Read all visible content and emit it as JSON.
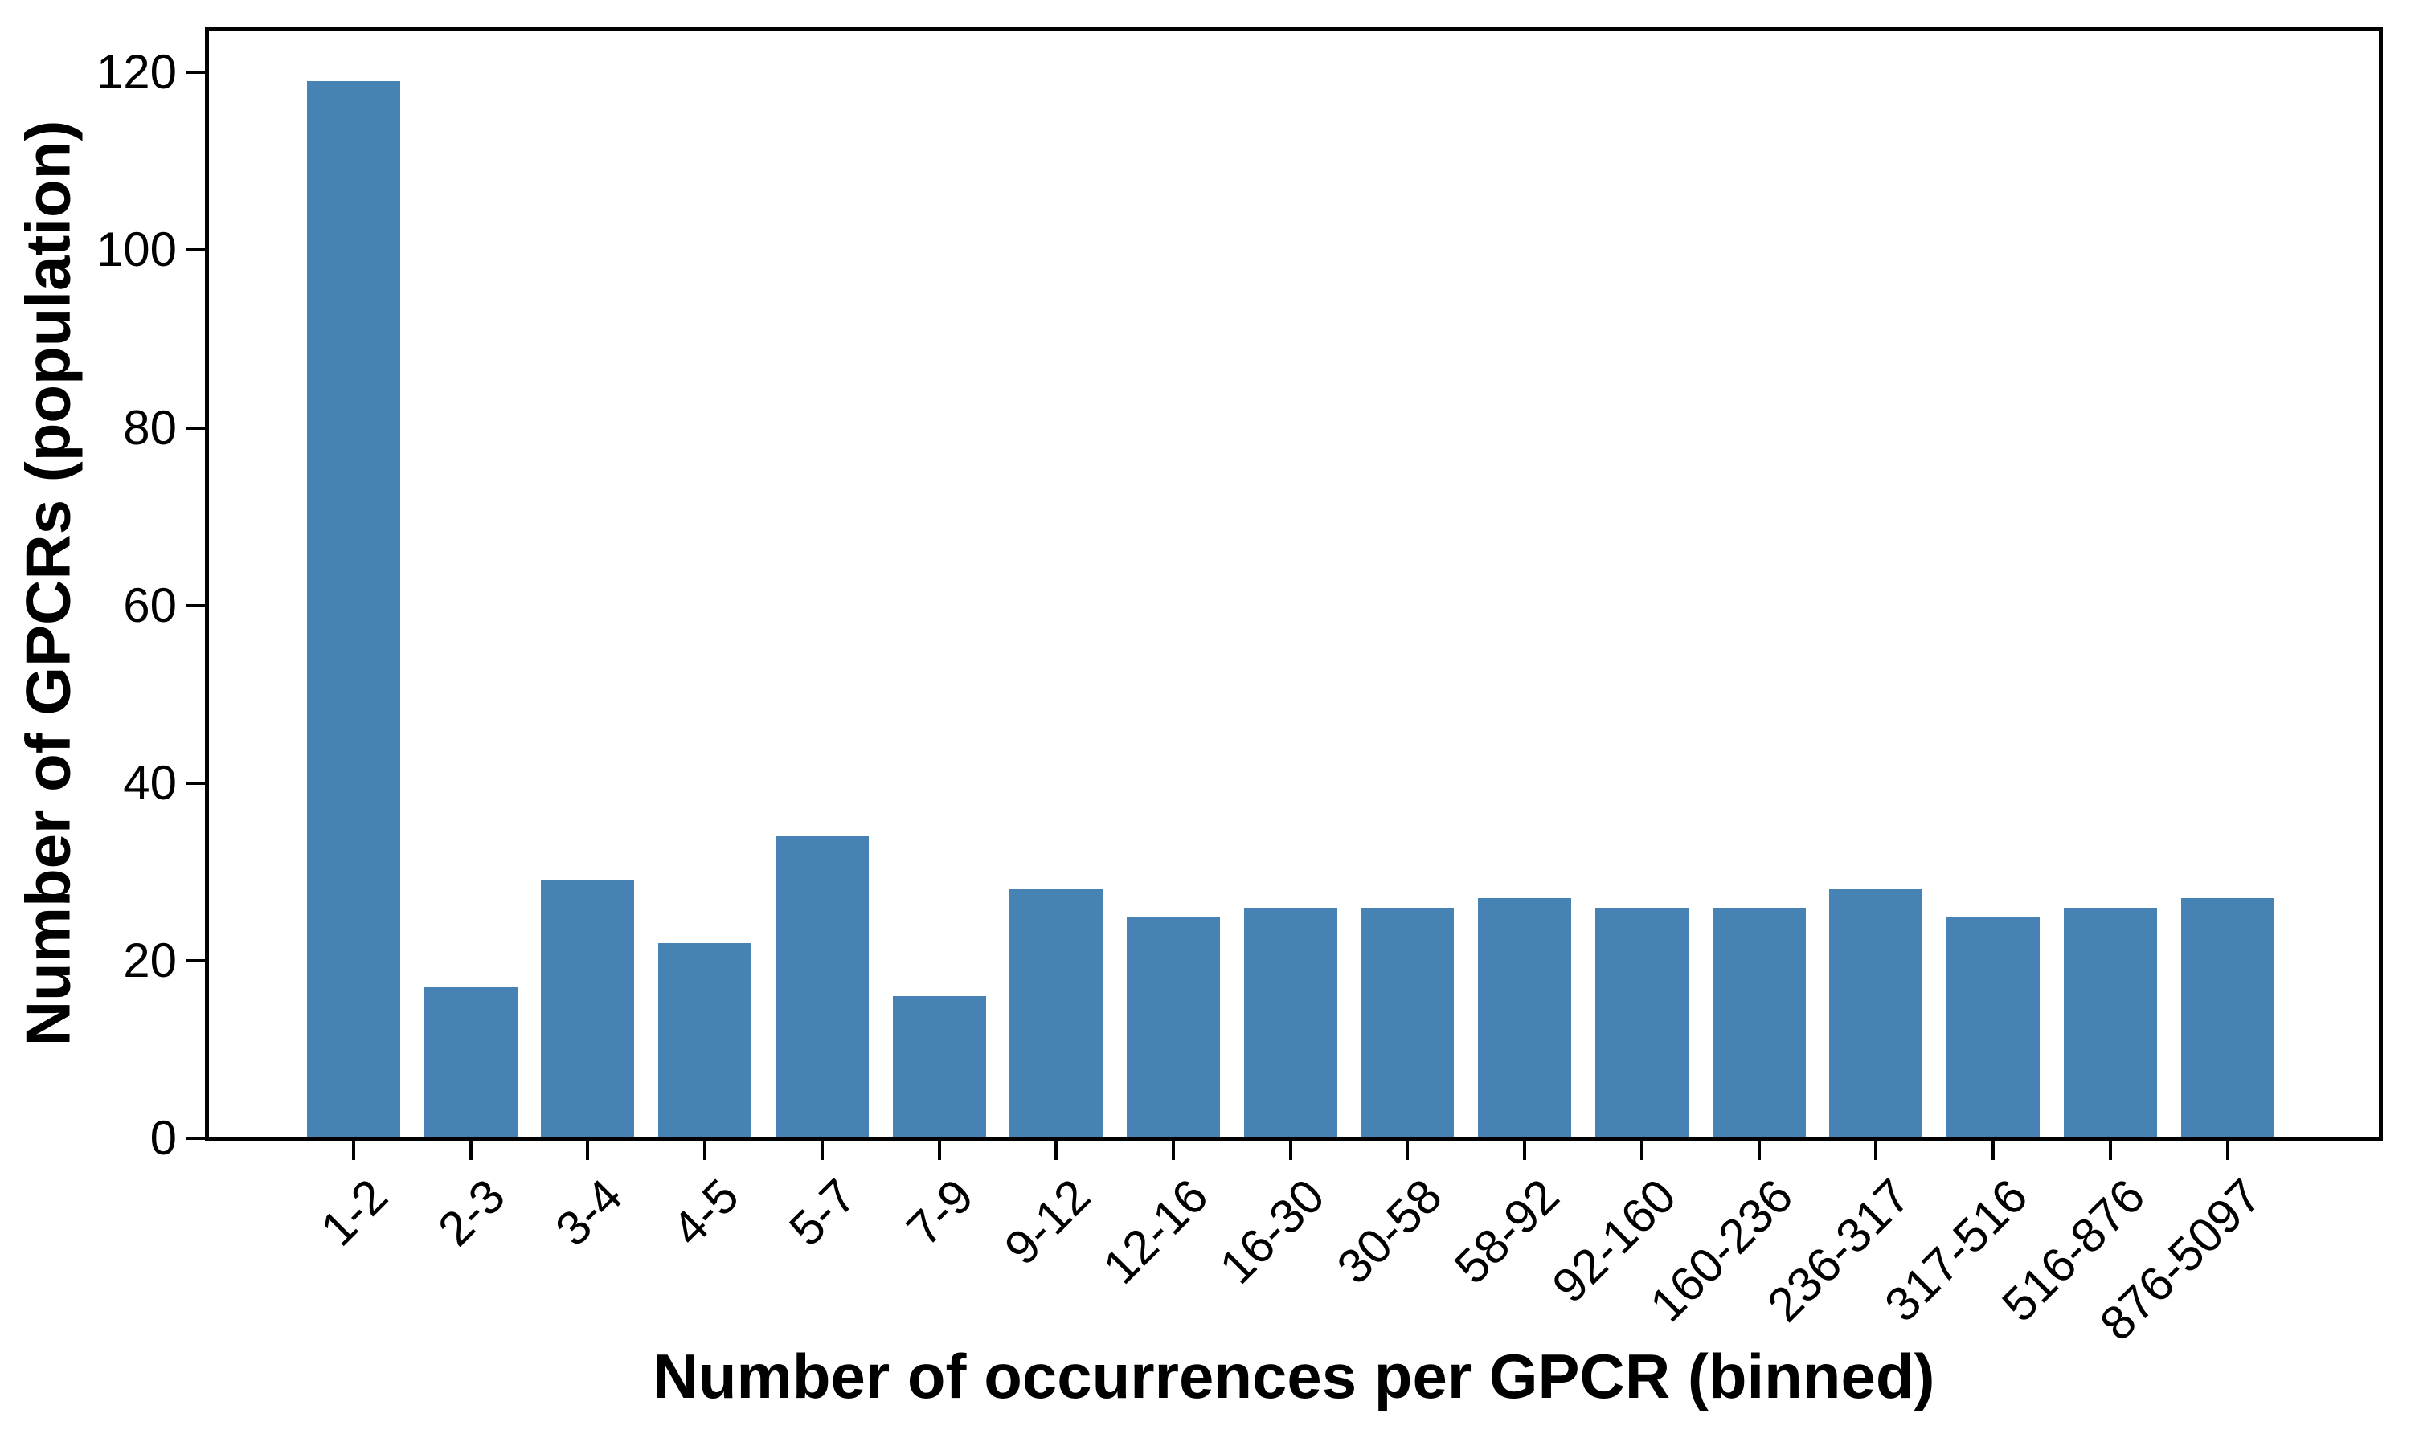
{
  "chart_data": {
    "type": "bar",
    "title": "",
    "xlabel": "Number of occurrences per GPCR (binned)",
    "ylabel": "Number of GPCRs (population)",
    "categories": [
      "1-2",
      "2-3",
      "3-4",
      "4-5",
      "5-7",
      "7-9",
      "9-12",
      "12-16",
      "16-30",
      "30-58",
      "58-92",
      "92-160",
      "160-236",
      "236-317",
      "317-516",
      "516-876",
      "876-5097"
    ],
    "values": [
      119,
      17,
      29,
      22,
      34,
      16,
      28,
      25,
      26,
      26,
      27,
      26,
      26,
      28,
      25,
      26,
      27
    ],
    "yticks": [
      0,
      20,
      40,
      60,
      80,
      100,
      120
    ],
    "ylim": [
      0,
      125
    ],
    "bar_color": "#4682b4",
    "grid": false,
    "legend_position": "none"
  }
}
